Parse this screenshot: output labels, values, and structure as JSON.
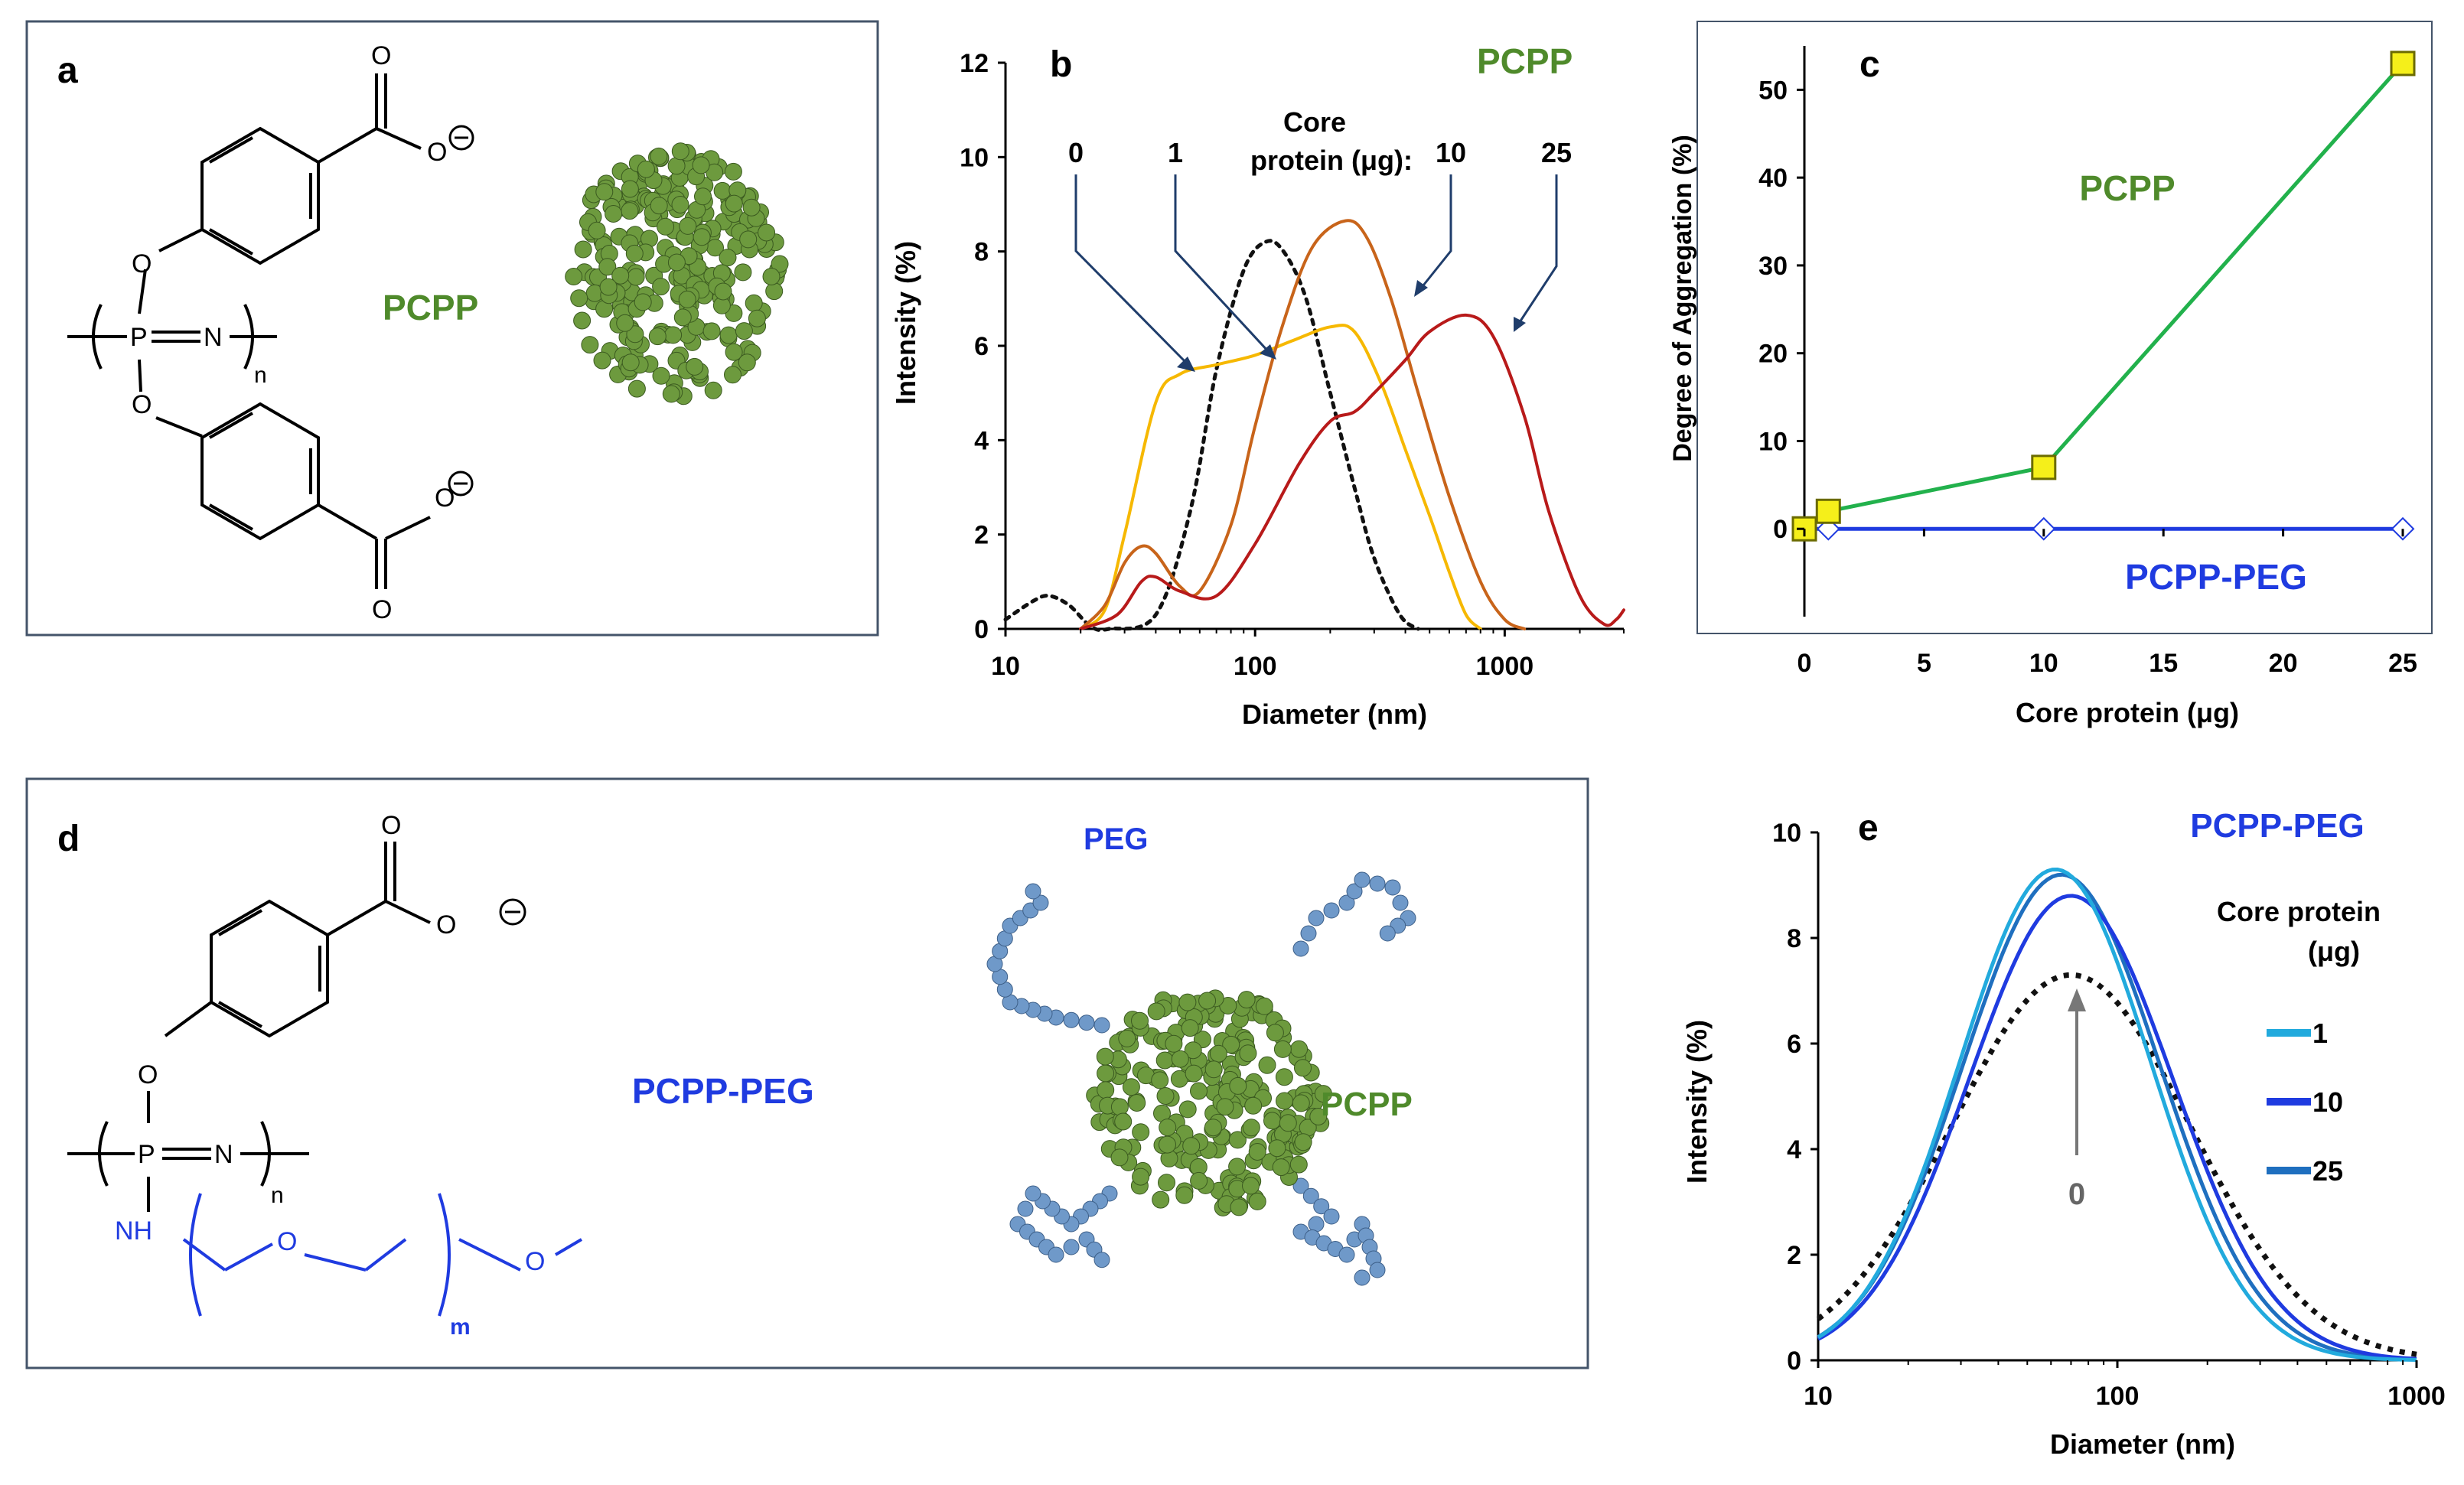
{
  "panels": {
    "a": {
      "letter": "a",
      "polymer_label": "PCPP",
      "atoms": {
        "o": "O",
        "p": "P",
        "n": "N",
        "sub_n": "n"
      }
    },
    "d": {
      "letter": "d",
      "polymer_label": "PCPP-PEG",
      "atoms": {
        "o": "O",
        "p": "P",
        "n": "N",
        "sub_n": "n",
        "nh": "NH",
        "sub_m": "m"
      },
      "peg_label": "PEG",
      "core_label": "PCPP"
    }
  },
  "colors": {
    "green_text": "#4f8a2b",
    "blue_text": "#1f3be0",
    "green_bead": "#6d9a3e",
    "blue_bead": "#6f99c9",
    "panel_border": "#44546a"
  },
  "chart_data": [
    {
      "panel": "b",
      "type": "line",
      "title": "PCPP",
      "xlabel": "Diameter (nm)",
      "ylabel": "Intensity (%)",
      "xscale": "log",
      "xlim": [
        10,
        3000
      ],
      "ylim": [
        0,
        12
      ],
      "xticks": [
        "10",
        "100",
        "1000"
      ],
      "yticks": [
        "0",
        "2",
        "4",
        "6",
        "8",
        "10",
        "12"
      ],
      "annotation_title": "Core protein (μg):",
      "annotation_lines": [
        "Core",
        "protein (μg):"
      ],
      "series": [
        {
          "name": "0",
          "color": "#111111",
          "dash": true,
          "points": [
            [
              10,
              0.2
            ],
            [
              13,
              0.6
            ],
            [
              15,
              0.7
            ],
            [
              18,
              0.5
            ],
            [
              22,
              0.05
            ],
            [
              26,
              0
            ],
            [
              40,
              0.3
            ],
            [
              55,
              2.5
            ],
            [
              70,
              5.5
            ],
            [
              90,
              7.6
            ],
            [
              110,
              8.2
            ],
            [
              130,
              8.0
            ],
            [
              160,
              7.0
            ],
            [
              200,
              5.0
            ],
            [
              250,
              3.0
            ],
            [
              300,
              1.5
            ],
            [
              380,
              0.3
            ],
            [
              450,
              0
            ]
          ]
        },
        {
          "name": "1",
          "color": "#f6b800",
          "dash": false,
          "points": [
            [
              20,
              0
            ],
            [
              25,
              0.4
            ],
            [
              30,
              2.0
            ],
            [
              40,
              4.8
            ],
            [
              50,
              5.4
            ],
            [
              70,
              5.6
            ],
            [
              100,
              5.8
            ],
            [
              140,
              6.1
            ],
            [
              200,
              6.4
            ],
            [
              250,
              6.3
            ],
            [
              320,
              5.2
            ],
            [
              400,
              3.8
            ],
            [
              500,
              2.4
            ],
            [
              600,
              1.2
            ],
            [
              700,
              0.3
            ],
            [
              800,
              0
            ]
          ]
        },
        {
          "name": "10",
          "color": "#c8641a",
          "dash": false,
          "points": [
            [
              20,
              0
            ],
            [
              25,
              0.5
            ],
            [
              30,
              1.4
            ],
            [
              35,
              1.75
            ],
            [
              40,
              1.6
            ],
            [
              50,
              0.9
            ],
            [
              60,
              0.8
            ],
            [
              80,
              2.2
            ],
            [
              100,
              4.3
            ],
            [
              130,
              6.5
            ],
            [
              170,
              8.1
            ],
            [
              230,
              8.65
            ],
            [
              280,
              8.3
            ],
            [
              350,
              7.0
            ],
            [
              450,
              5.0
            ],
            [
              600,
              2.8
            ],
            [
              800,
              1.0
            ],
            [
              1000,
              0.2
            ],
            [
              1200,
              0
            ]
          ]
        },
        {
          "name": "25",
          "color": "#b81a1a",
          "dash": false,
          "points": [
            [
              20,
              0
            ],
            [
              28,
              0.3
            ],
            [
              35,
              1.0
            ],
            [
              40,
              1.1
            ],
            [
              50,
              0.8
            ],
            [
              70,
              0.7
            ],
            [
              100,
              1.8
            ],
            [
              150,
              3.5
            ],
            [
              200,
              4.4
            ],
            [
              250,
              4.6
            ],
            [
              300,
              5.0
            ],
            [
              400,
              5.7
            ],
            [
              500,
              6.3
            ],
            [
              700,
              6.65
            ],
            [
              900,
              6.2
            ],
            [
              1200,
              4.5
            ],
            [
              1500,
              2.5
            ],
            [
              2000,
              0.7
            ],
            [
              2500,
              0.1
            ],
            [
              2800,
              0.2
            ],
            [
              3000,
              0.4
            ]
          ]
        }
      ]
    },
    {
      "panel": "c",
      "type": "line",
      "xlabel": "Core protein (μg)",
      "ylabel": "Degree of Aggregation (%)",
      "xlim": [
        0,
        25
      ],
      "ylim": [
        -10,
        55
      ],
      "xticks": [
        "0",
        "5",
        "10",
        "15",
        "20",
        "25"
      ],
      "yticks": [
        "0",
        "10",
        "20",
        "30",
        "40",
        "50"
      ],
      "series": [
        {
          "name": "PCPP",
          "color": "#22b14c",
          "marker": "square",
          "marker_fill": "#f5ef1a",
          "x": [
            0,
            1,
            10,
            25
          ],
          "y": [
            0,
            2,
            7,
            53
          ]
        },
        {
          "name": "PCPP-PEG",
          "color": "#1f3be0",
          "marker": "diamond",
          "marker_fill": "#ffffff",
          "x": [
            0,
            1,
            10,
            25
          ],
          "y": [
            0,
            0,
            0,
            0
          ]
        }
      ]
    },
    {
      "panel": "e",
      "type": "line",
      "title": "PCPP-PEG",
      "xlabel": "Diameter (nm)",
      "ylabel": "Intensity (%)",
      "xscale": "log",
      "xlim": [
        10,
        1000
      ],
      "ylim": [
        0,
        10
      ],
      "xticks": [
        "10",
        "100",
        "1000"
      ],
      "yticks": [
        "0",
        "2",
        "4",
        "6",
        "8",
        "10"
      ],
      "legend_title": "Core protein (μg)",
      "legend_title_lines": [
        "Core protein",
        "(μg)"
      ],
      "legend_position": "right",
      "zero_label": "0",
      "series": [
        {
          "name": "0",
          "color": "#111111",
          "dash": true,
          "peak": 7.3,
          "center": 70,
          "width": 0.4
        },
        {
          "name": "1",
          "color": "#22aadd",
          "dash": false,
          "peak": 9.3,
          "center": 62,
          "width": 0.32
        },
        {
          "name": "10",
          "color": "#1f3be0",
          "dash": false,
          "peak": 8.8,
          "center": 70,
          "width": 0.34
        },
        {
          "name": "25",
          "color": "#1f6fbf",
          "dash": false,
          "peak": 9.2,
          "center": 65,
          "width": 0.33
        }
      ]
    }
  ]
}
